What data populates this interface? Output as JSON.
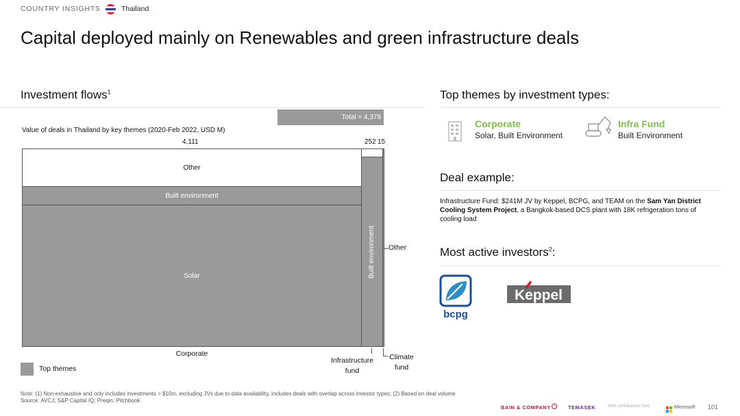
{
  "header": {
    "section": "COUNTRY INSIGHTS",
    "country": "Thailand",
    "title": "Capital deployed mainly on Renewables and green infrastructure deals"
  },
  "flows": {
    "title": "Investment flows",
    "title_sup": "1",
    "subtitle": "Value of deals in Thailand by key themes (2020-Feb 2022, USD M)",
    "total_label": "Total = 4,378",
    "legend": "Top themes"
  },
  "chart_data": {
    "type": "marimekko",
    "total": 4378,
    "columns": [
      {
        "name": "Corporate",
        "total": 4111,
        "segments": [
          {
            "name": "Solar",
            "highlight": true,
            "value": 2858
          },
          {
            "name": "Built environment",
            "highlight": true,
            "value": 385
          },
          {
            "name": "Other",
            "highlight": false,
            "value": 868
          }
        ]
      },
      {
        "name": "Infrastructure fund",
        "total": 252,
        "segments": [
          {
            "name": "Built environment",
            "highlight": true,
            "value": 237
          },
          {
            "name": "Other",
            "highlight": false,
            "value": 15
          }
        ]
      },
      {
        "name": "Climate fund",
        "total": 15,
        "segments": [
          {
            "name": "Other",
            "highlight": true,
            "value": 15
          }
        ]
      }
    ],
    "labels": {
      "col1_total": "4,111",
      "col2_total": "252",
      "col3_total": "15",
      "other": "Other",
      "built_environment": "Built environment",
      "solar": "Solar",
      "corporate": "Corporate",
      "infra_line1": "Infrastructure",
      "infra_line2": "fund",
      "climate_line1": "Climate",
      "climate_line2": "fund",
      "other_annot": "Other"
    },
    "colors": {
      "highlight": "#9a9a9a",
      "other": "#ffffff",
      "border": "#555555"
    }
  },
  "themes": {
    "title": "Top themes by investment types:",
    "items": [
      {
        "head": "Corporate",
        "sub": "Solar, Built Environment",
        "icon": "building-icon"
      },
      {
        "head": "Infra Fund",
        "sub": "Built Environment",
        "icon": "excavator-icon"
      }
    ]
  },
  "deal": {
    "title": "Deal example:",
    "text_a": "Infrastructure Fund: $241M JV by Keppel, BCPG, and TEAM on the ",
    "text_bold": "Sam Yan District Cooling System Project",
    "text_b": ", a Bangkok-based DCS plant with 18K refrigeration tons of cooling load"
  },
  "investors": {
    "title": "Most active investors",
    "title_sup": "2",
    "title_end": ":",
    "logos": [
      "bcpg",
      "Keppel"
    ]
  },
  "footer": {
    "note": "Note: (1) Non-exhaustive and only includes investments > $10m, excluding JVs due to data availability, includes deals with overlap across investor types; (2) Based on deal volume",
    "source": "Source: AVCJ; S&P Capital IQ; Preqin; Pitchbook",
    "bain": "BAIN & COMPANY",
    "temasek": "TEMASEK",
    "contrib": "With contributions from",
    "microsoft": "Microsoft",
    "page": "101"
  },
  "colors": {
    "accent_green": "#7fc241",
    "bar_grey": "#9a9a9a",
    "bcpg_blue": "#1a4f9c",
    "keppel_red": "#d0202e"
  }
}
